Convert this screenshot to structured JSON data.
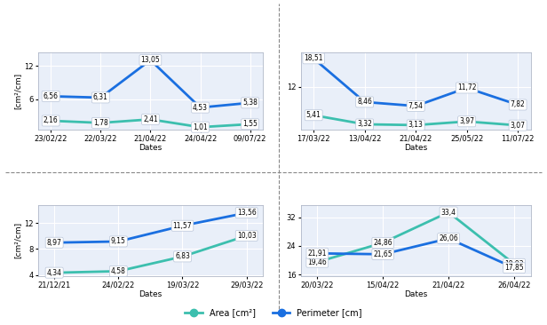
{
  "chart_data": [
    {
      "type": "line",
      "x_label": "Dates",
      "y_label": "[cm²/cm]",
      "categories": [
        "23/02/22",
        "22/03/22",
        "21/04/22",
        "24/04/22",
        "09/07/22"
      ],
      "ylim": [
        0.5,
        14.5
      ],
      "yticks": [
        6,
        12
      ],
      "grid": true,
      "data_labels": true,
      "legend": "lower center",
      "series": [
        {
          "name": "Area [cm²]",
          "color": "#3cbfae",
          "marker": "o",
          "line_style": "solid",
          "values": [
            2.16,
            1.78,
            2.41,
            1.01,
            1.55
          ],
          "value_labels": [
            "2,16",
            "1,78",
            "2,41",
            "1,01",
            "1,55"
          ]
        },
        {
          "name": "Perimeter [cm]",
          "color": "#1a6fe0",
          "marker": "o",
          "line_style": "solid",
          "values": [
            6.56,
            6.31,
            13.05,
            4.53,
            5.38
          ],
          "value_labels": [
            "6,56",
            "6,31",
            "13,05",
            "4,53",
            "5,38"
          ]
        }
      ]
    },
    {
      "type": "line",
      "x_label": "Dates",
      "categories": [
        "17/03/22",
        "13/04/22",
        "21/04/22",
        "25/05/22",
        "11/07/22"
      ],
      "ylim": [
        2,
        20
      ],
      "yticks": [
        12
      ],
      "grid": true,
      "data_labels": true,
      "series": [
        {
          "name": "Area [cm²]",
          "color": "#3cbfae",
          "marker": "o",
          "line_style": "solid",
          "values": [
            5.41,
            3.32,
            3.13,
            3.97,
            3.07
          ],
          "value_labels": [
            "5,41",
            "3,32",
            "3,13",
            "3,97",
            "3,07"
          ]
        },
        {
          "name": "Perimeter [cm]",
          "color": "#1a6fe0",
          "marker": "o",
          "line_style": "solid",
          "values": [
            18.51,
            8.46,
            7.54,
            11.72,
            7.82
          ],
          "value_labels": [
            "18,51",
            "8,46",
            "7,54",
            "11,72",
            "7,82"
          ]
        }
      ]
    },
    {
      "type": "line",
      "x_label": "Dates",
      "y_label": "[cm²/cm]",
      "categories": [
        "21/12/21",
        "24/02/22",
        "19/03/22",
        "29/03/22"
      ],
      "ylim": [
        3.8,
        14.8
      ],
      "yticks": [
        4,
        8,
        12
      ],
      "grid": true,
      "data_labels": true,
      "series": [
        {
          "name": "Area [cm²]",
          "color": "#3cbfae",
          "marker": "o",
          "line_style": "solid",
          "values": [
            4.34,
            4.58,
            6.83,
            10.03
          ],
          "value_labels": [
            "4,34",
            "4,58",
            "6,83",
            "10,03"
          ]
        },
        {
          "name": "Perimeter [cm]",
          "color": "#1a6fe0",
          "marker": "o",
          "line_style": "solid",
          "values": [
            8.97,
            9.15,
            11.57,
            13.56
          ],
          "value_labels": [
            "8,97",
            "9,15",
            "11,57",
            "13,56"
          ]
        }
      ]
    },
    {
      "type": "line",
      "x_label": "Dates",
      "categories": [
        "20/03/22",
        "15/04/22",
        "21/04/22",
        "26/04/22"
      ],
      "ylim": [
        15.5,
        35.5
      ],
      "yticks": [
        16,
        24,
        32
      ],
      "grid": true,
      "data_labels": true,
      "series": [
        {
          "name": "Area [cm²]",
          "color": "#3cbfae",
          "marker": "o",
          "line_style": "solid",
          "values": [
            19.46,
            24.86,
            33.4,
            18.93
          ],
          "value_labels": [
            "19,46",
            "24,86",
            "33,4",
            "18,93"
          ]
        },
        {
          "name": "Perimeter [cm]",
          "color": "#1a6fe0",
          "marker": "o",
          "line_style": "solid",
          "values": [
            21.91,
            21.65,
            26.06,
            17.85
          ],
          "value_labels": [
            "21,91",
            "21,65",
            "26,06",
            "17,85"
          ]
        }
      ]
    }
  ]
}
